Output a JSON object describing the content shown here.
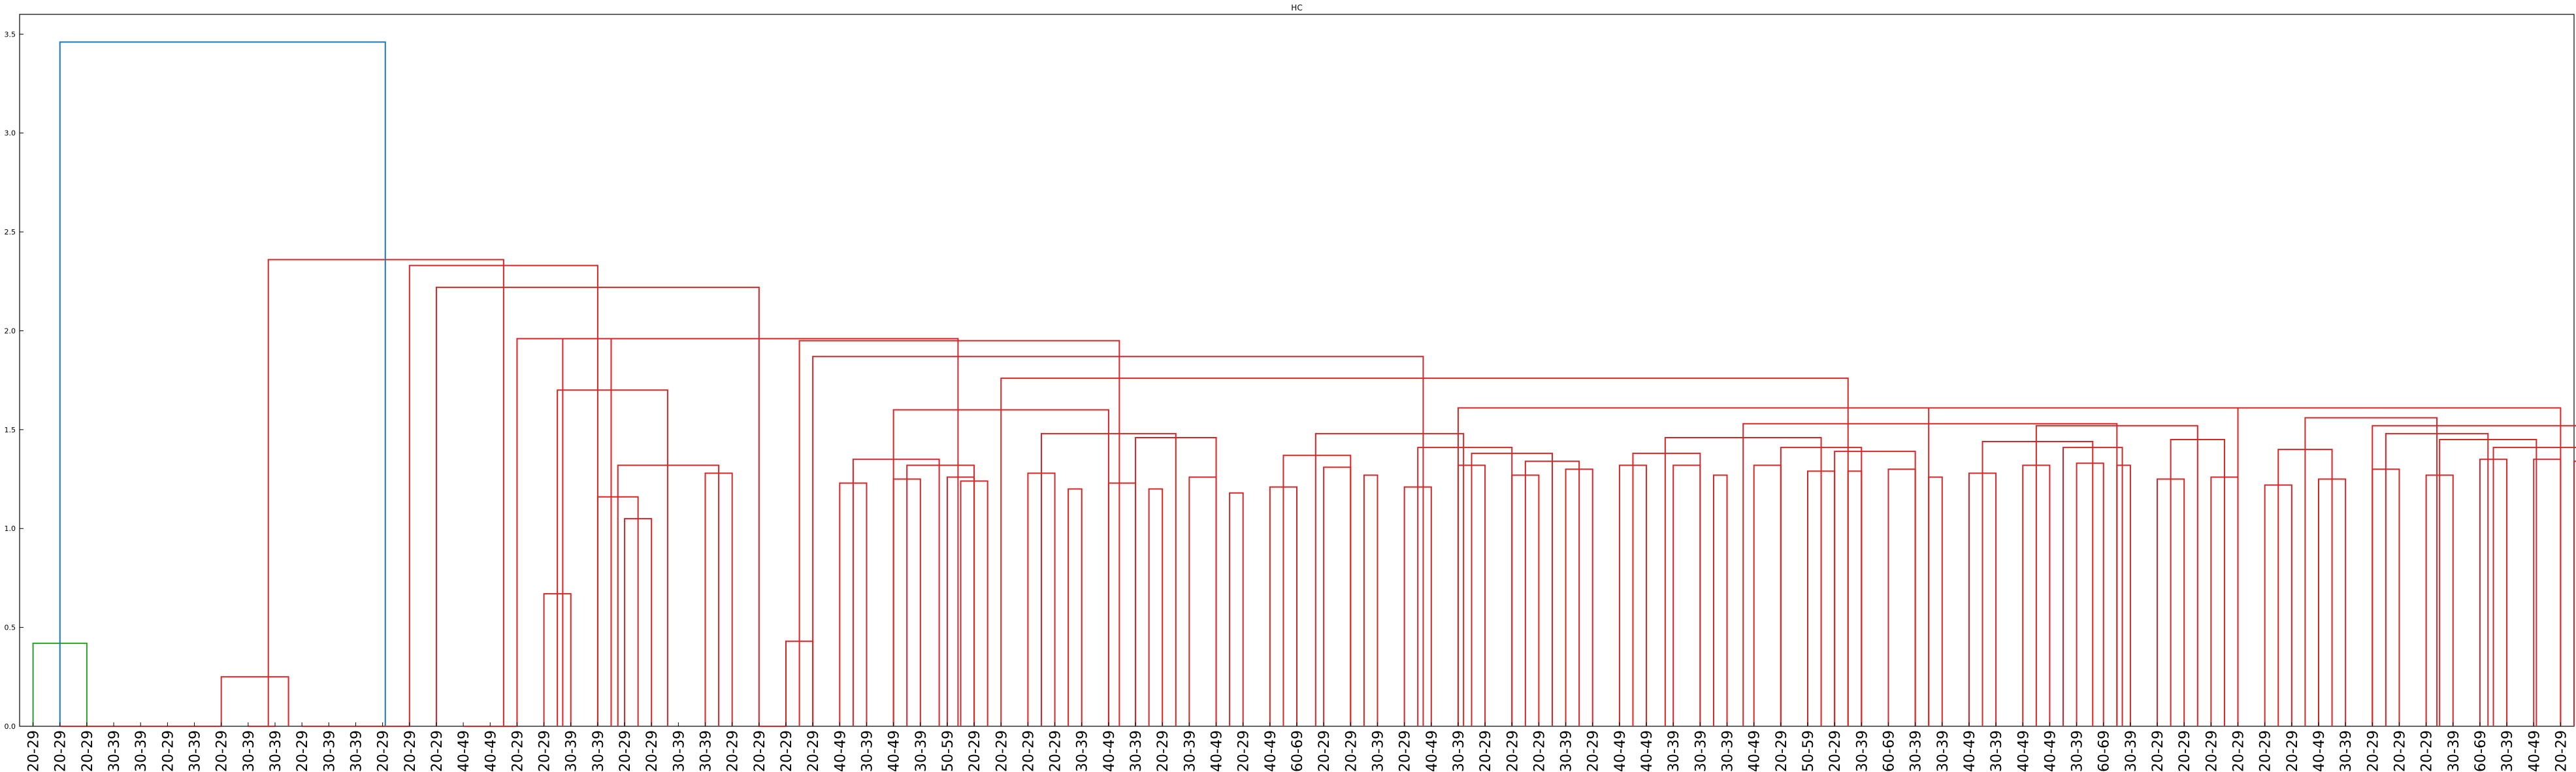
{
  "chart_data": {
    "type": "dendrogram",
    "title": "HC",
    "xlabel": "",
    "ylabel": "",
    "ylim": [
      0,
      3.6
    ],
    "yticks": [
      "0.0",
      "0.5",
      "1.0",
      "1.5",
      "2.0",
      "2.5",
      "3.0",
      "3.5"
    ],
    "grid": false,
    "legend": "none",
    "colors": {
      "above_threshold": "#1f77b4",
      "cluster1": "#2ca02c",
      "cluster2": "#d62728"
    },
    "leaves": [
      "20-29",
      "20-29",
      "20-29",
      "30-39",
      "30-39",
      "20-29",
      "30-39",
      "20-29",
      "30-39",
      "30-39",
      "20-29",
      "30-39",
      "30-39",
      "20-29",
      "20-29",
      "20-29",
      "40-49",
      "40-49",
      "20-29",
      "20-29",
      "30-39",
      "30-39",
      "20-29",
      "20-29",
      "30-39",
      "30-39",
      "20-29",
      "20-29",
      "20-29",
      "20-29",
      "40-49",
      "30-39",
      "40-49",
      "30-39",
      "50-59",
      "20-29",
      "20-29",
      "20-29",
      "20-29",
      "30-39",
      "40-49",
      "30-39",
      "20-29",
      "30-39",
      "40-49",
      "20-29",
      "40-49",
      "60-69",
      "20-29",
      "20-29",
      "30-39",
      "20-29",
      "40-49",
      "30-39",
      "20-29",
      "20-29",
      "20-29",
      "30-39",
      "20-29",
      "40-49",
      "40-49",
      "30-39",
      "30-39",
      "30-39",
      "40-49",
      "20-29",
      "50-59",
      "20-29",
      "30-39",
      "60-69",
      "30-39",
      "30-39",
      "40-49",
      "30-39",
      "40-49",
      "40-49",
      "30-39",
      "60-69",
      "30-39",
      "20-29",
      "20-29",
      "20-29",
      "20-29",
      "20-29",
      "20-29",
      "40-49",
      "30-39",
      "20-29",
      "20-29",
      "20-29",
      "30-39",
      "60-69",
      "30-39",
      "40-49",
      "20-29"
    ],
    "links": [
      {
        "l": 0,
        "r": 2,
        "h": 0.42,
        "c": "cluster1"
      },
      {
        "l": 1,
        "r": 3,
        "h": 0.0,
        "c": "cluster2"
      },
      {
        "l": 3,
        "r": 4,
        "h": 0.0,
        "c": "cluster2"
      },
      {
        "l": 4,
        "r": 5,
        "h": 0.0,
        "c": "cluster2"
      },
      {
        "l": 5,
        "r": 6,
        "h": 0.0,
        "c": "cluster2"
      },
      {
        "l": 6,
        "r": 7,
        "h": 0.0,
        "c": "cluster2"
      },
      {
        "l": 8,
        "r": 9,
        "h": 0.0,
        "c": "cluster2"
      },
      {
        "l": 7,
        "r": 9.5,
        "h": 0.25,
        "c": "cluster2"
      },
      {
        "l": 10,
        "r": 11,
        "h": 0.0,
        "c": "cluster2"
      },
      {
        "l": 11,
        "r": 12,
        "h": 0.0,
        "c": "cluster2"
      },
      {
        "l": 12,
        "r": 13,
        "h": 0.0,
        "c": "cluster2"
      },
      {
        "l": 13,
        "r": 14,
        "h": 0.0,
        "c": "cluster2"
      },
      {
        "l": 16,
        "r": 17,
        "h": 0.0,
        "c": "cluster2"
      },
      {
        "l": 17,
        "r": 18,
        "h": 0.0,
        "c": "cluster2"
      },
      {
        "l": 19,
        "r": 20,
        "h": 0.67,
        "c": "cluster2"
      },
      {
        "l": 22,
        "r": 23,
        "h": 1.05,
        "c": "cluster2"
      },
      {
        "l": 21,
        "r": 22.5,
        "h": 1.16,
        "c": "cluster2"
      },
      {
        "l": 25,
        "r": 26,
        "h": 1.28,
        "c": "cluster2"
      },
      {
        "l": 21.75,
        "r": 25.5,
        "h": 1.32,
        "c": "cluster2"
      },
      {
        "l": 19.5,
        "r": 23.6,
        "h": 1.7,
        "c": "cluster2"
      },
      {
        "l": 18,
        "r": 21.5,
        "h": 1.96,
        "c": "cluster2"
      },
      {
        "l": 27,
        "r": 28,
        "h": 0.0,
        "c": "cluster2"
      },
      {
        "l": 28,
        "r": 29,
        "h": 0.43,
        "c": "cluster2"
      },
      {
        "l": 30,
        "r": 31,
        "h": 1.23,
        "c": "cluster2"
      },
      {
        "l": 32,
        "r": 33,
        "h": 1.25,
        "c": "cluster2"
      },
      {
        "l": 34,
        "r": 35,
        "h": 1.26,
        "c": "cluster2"
      },
      {
        "l": 34.5,
        "r": 35.5,
        "h": 1.24,
        "c": "cluster2"
      },
      {
        "l": 32.5,
        "r": 35,
        "h": 1.32,
        "c": "cluster2"
      },
      {
        "l": 30.5,
        "r": 33.7,
        "h": 1.35,
        "c": "cluster2"
      },
      {
        "l": 37,
        "r": 38,
        "h": 1.28,
        "c": "cluster2"
      },
      {
        "l": 38.5,
        "r": 39,
        "h": 1.2,
        "c": "cluster2"
      },
      {
        "l": 40,
        "r": 41,
        "h": 1.23,
        "c": "cluster2"
      },
      {
        "l": 41.5,
        "r": 42,
        "h": 1.2,
        "c": "cluster2"
      },
      {
        "l": 43,
        "r": 44,
        "h": 1.26,
        "c": "cluster2"
      },
      {
        "l": 44.5,
        "r": 45,
        "h": 1.18,
        "c": "cluster2"
      },
      {
        "l": 41,
        "r": 44,
        "h": 1.46,
        "c": "cluster2"
      },
      {
        "l": 37.5,
        "r": 42.5,
        "h": 1.48,
        "c": "cluster2"
      },
      {
        "l": 32,
        "r": 40,
        "h": 1.6,
        "c": "cluster2"
      },
      {
        "l": 46,
        "r": 47,
        "h": 1.21,
        "c": "cluster2"
      },
      {
        "l": 48,
        "r": 49,
        "h": 1.31,
        "c": "cluster2"
      },
      {
        "l": 49.5,
        "r": 50,
        "h": 1.27,
        "c": "cluster2"
      },
      {
        "l": 46.5,
        "r": 49,
        "h": 1.37,
        "c": "cluster2"
      },
      {
        "l": 51,
        "r": 52,
        "h": 1.21,
        "c": "cluster2"
      },
      {
        "l": 53,
        "r": 54,
        "h": 1.32,
        "c": "cluster2"
      },
      {
        "l": 55,
        "r": 56,
        "h": 1.27,
        "c": "cluster2"
      },
      {
        "l": 57,
        "r": 58,
        "h": 1.3,
        "c": "cluster2"
      },
      {
        "l": 55.5,
        "r": 57.5,
        "h": 1.34,
        "c": "cluster2"
      },
      {
        "l": 53.5,
        "r": 56.5,
        "h": 1.38,
        "c": "cluster2"
      },
      {
        "l": 51.5,
        "r": 55,
        "h": 1.41,
        "c": "cluster2"
      },
      {
        "l": 47.7,
        "r": 53.2,
        "h": 1.48,
        "c": "cluster2"
      },
      {
        "l": 59,
        "r": 60,
        "h": 1.32,
        "c": "cluster2"
      },
      {
        "l": 61,
        "r": 62,
        "h": 1.32,
        "c": "cluster2"
      },
      {
        "l": 62.5,
        "r": 63,
        "h": 1.27,
        "c": "cluster2"
      },
      {
        "l": 59.5,
        "r": 62,
        "h": 1.38,
        "c": "cluster2"
      },
      {
        "l": 64,
        "r": 65,
        "h": 1.32,
        "c": "cluster2"
      },
      {
        "l": 66,
        "r": 67,
        "h": 1.29,
        "c": "cluster2"
      },
      {
        "l": 67.5,
        "r": 68,
        "h": 1.29,
        "c": "cluster2"
      },
      {
        "l": 69,
        "r": 70,
        "h": 1.3,
        "c": "cluster2"
      },
      {
        "l": 70.5,
        "r": 71,
        "h": 1.26,
        "c": "cluster2"
      },
      {
        "l": 67,
        "r": 70,
        "h": 1.39,
        "c": "cluster2"
      },
      {
        "l": 65,
        "r": 68,
        "h": 1.41,
        "c": "cluster2"
      },
      {
        "l": 60.7,
        "r": 66.5,
        "h": 1.46,
        "c": "cluster2"
      },
      {
        "l": 72,
        "r": 73,
        "h": 1.28,
        "c": "cluster2"
      },
      {
        "l": 74,
        "r": 75,
        "h": 1.32,
        "c": "cluster2"
      },
      {
        "l": 76,
        "r": 77,
        "h": 1.33,
        "c": "cluster2"
      },
      {
        "l": 77.5,
        "r": 78,
        "h": 1.32,
        "c": "cluster2"
      },
      {
        "l": 75.5,
        "r": 77.7,
        "h": 1.41,
        "c": "cluster2"
      },
      {
        "l": 72.5,
        "r": 76.6,
        "h": 1.44,
        "c": "cluster2"
      },
      {
        "l": 79,
        "r": 80,
        "h": 1.25,
        "c": "cluster2"
      },
      {
        "l": 81,
        "r": 82,
        "h": 1.26,
        "c": "cluster2"
      },
      {
        "l": 79.5,
        "r": 81.5,
        "h": 1.45,
        "c": "cluster2"
      },
      {
        "l": 74.5,
        "r": 80.5,
        "h": 1.52,
        "c": "cluster2"
      },
      {
        "l": 63.6,
        "r": 77.5,
        "h": 1.53,
        "c": "cluster2"
      },
      {
        "l": 83,
        "r": 84,
        "h": 1.22,
        "c": "cluster2"
      },
      {
        "l": 85,
        "r": 86,
        "h": 1.25,
        "c": "cluster2"
      },
      {
        "l": 83.5,
        "r": 85.5,
        "h": 1.4,
        "c": "cluster2"
      },
      {
        "l": 87,
        "r": 88,
        "h": 1.3,
        "c": "cluster2"
      },
      {
        "l": 89,
        "r": 90,
        "h": 1.27,
        "c": "cluster2"
      },
      {
        "l": 91,
        "r": 92,
        "h": 1.35,
        "c": "cluster2"
      },
      {
        "l": 93,
        "r": 94,
        "h": 1.35,
        "c": "cluster2"
      },
      {
        "l": 94.5,
        "r": 95,
        "h": 1.34,
        "c": "cluster2"
      },
      {
        "l": 91.5,
        "r": 94.7,
        "h": 1.41,
        "c": "cluster2"
      },
      {
        "l": 89.5,
        "r": 93.1,
        "h": 1.45,
        "c": "cluster2"
      },
      {
        "l": 87.5,
        "r": 91.3,
        "h": 1.48,
        "c": "cluster2"
      },
      {
        "l": 84.5,
        "r": 89.4,
        "h": 1.56,
        "c": "cluster2"
      },
      {
        "l": 97,
        "r": 98,
        "h": 1.29,
        "c": "cluster2"
      },
      {
        "l": 98.5,
        "r": 99,
        "h": 1.21,
        "c": "cluster2"
      },
      {
        "l": 100,
        "r": 101,
        "h": 1.35,
        "c": "cluster2"
      },
      {
        "l": 102,
        "r": 103,
        "h": 1.29,
        "c": "cluster2"
      },
      {
        "l": 103.5,
        "r": 104,
        "h": 1.23,
        "c": "cluster2"
      },
      {
        "l": 100.5,
        "r": 103.7,
        "h": 1.34,
        "c": "cluster2"
      },
      {
        "l": 105,
        "r": 106,
        "h": 1.29,
        "c": "cluster2"
      },
      {
        "l": 107,
        "r": 108,
        "h": 1.3,
        "c": "cluster2"
      },
      {
        "l": 106.5,
        "r": 108,
        "h": 1.37,
        "c": "cluster2"
      },
      {
        "l": 102.1,
        "r": 107.2,
        "h": 1.42,
        "c": "cluster2"
      },
      {
        "l": 97.7,
        "r": 104.6,
        "h": 1.51,
        "c": "cluster2"
      },
      {
        "l": 87,
        "r": 101,
        "h": 1.52,
        "c": "cluster2"
      },
      {
        "l": 70.5,
        "r": 94,
        "h": 1.61,
        "c": "cluster2"
      },
      {
        "l": 53,
        "r": 82,
        "h": 1.61,
        "c": "cluster2"
      },
      {
        "l": 36,
        "r": 67.5,
        "h": 1.76,
        "c": "cluster2"
      },
      {
        "l": 29,
        "r": 51.7,
        "h": 1.87,
        "c": "cluster2"
      },
      {
        "l": 28.5,
        "r": 40.4,
        "h": 1.95,
        "c": "cluster2"
      },
      {
        "l": 19.7,
        "r": 34.4,
        "h": 1.96,
        "c": "cluster2"
      },
      {
        "l": 15,
        "r": 27,
        "h": 2.22,
        "c": "cluster2"
      },
      {
        "l": 14,
        "r": 21,
        "h": 2.33,
        "c": "cluster2"
      },
      {
        "l": 8.75,
        "r": 17.5,
        "h": 2.36,
        "c": "cluster2"
      },
      {
        "l": 1,
        "r": 13.1,
        "h": 3.46,
        "c": "above_threshold"
      }
    ]
  }
}
